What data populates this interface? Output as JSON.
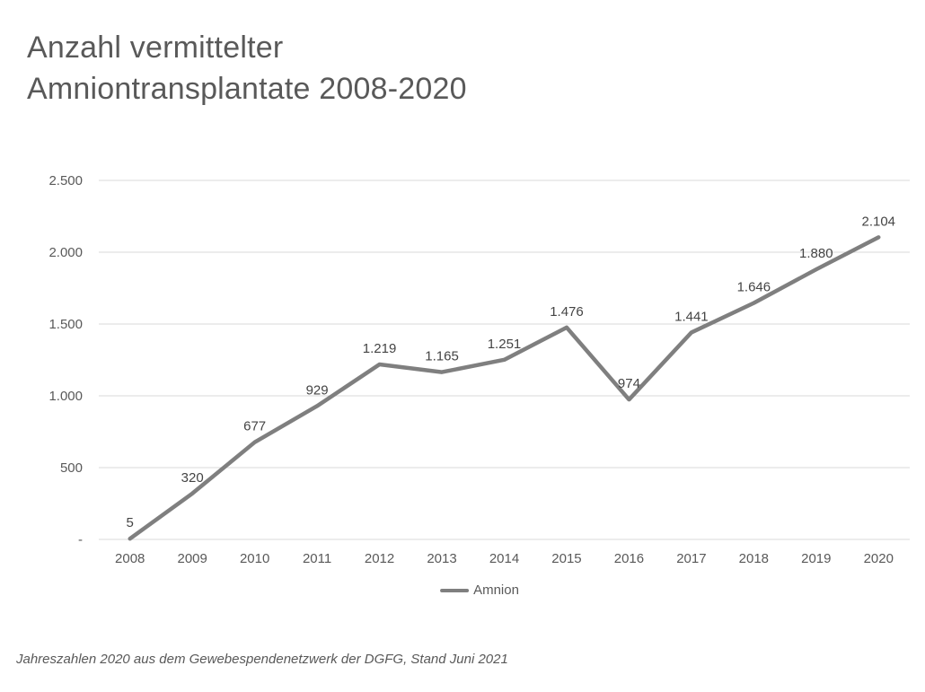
{
  "title": "Anzahl vermittelter\nAmniontransplantate 2008-2020",
  "footer": "Jahreszahlen 2020 aus dem Gewebespendenetzwerk der DGFG, Stand Juni 2021",
  "legend": {
    "label": "Amnion"
  },
  "colors": {
    "line": "#7f7f7f",
    "grid": "#d9d9d9",
    "axis_text": "#595959",
    "data_label": "#444444",
    "title_text": "#595959"
  },
  "chart_data": {
    "type": "line",
    "title": "Anzahl vermittelter Amniontransplantate 2008-2020",
    "xlabel": "",
    "ylabel": "",
    "categories": [
      "2008",
      "2009",
      "2010",
      "2011",
      "2012",
      "2013",
      "2014",
      "2015",
      "2016",
      "2017",
      "2018",
      "2019",
      "2020"
    ],
    "series": [
      {
        "name": "Amnion",
        "values": [
          5,
          320,
          677,
          929,
          1219,
          1165,
          1251,
          1476,
          974,
          1441,
          1646,
          1880,
          2104
        ],
        "labels": [
          "5",
          "320",
          "677",
          "929",
          "1.219",
          "1.165",
          "1.251",
          "1.476",
          "974",
          "1.441",
          "1.646",
          "1.880",
          "2.104"
        ]
      }
    ],
    "ylim": [
      0,
      2500
    ],
    "ytick_interval": 500,
    "ytick_labels": [
      "-",
      "500",
      "1.000",
      "1.500",
      "2.000",
      "2.500"
    ],
    "grid": true,
    "legend_position": "bottom"
  }
}
